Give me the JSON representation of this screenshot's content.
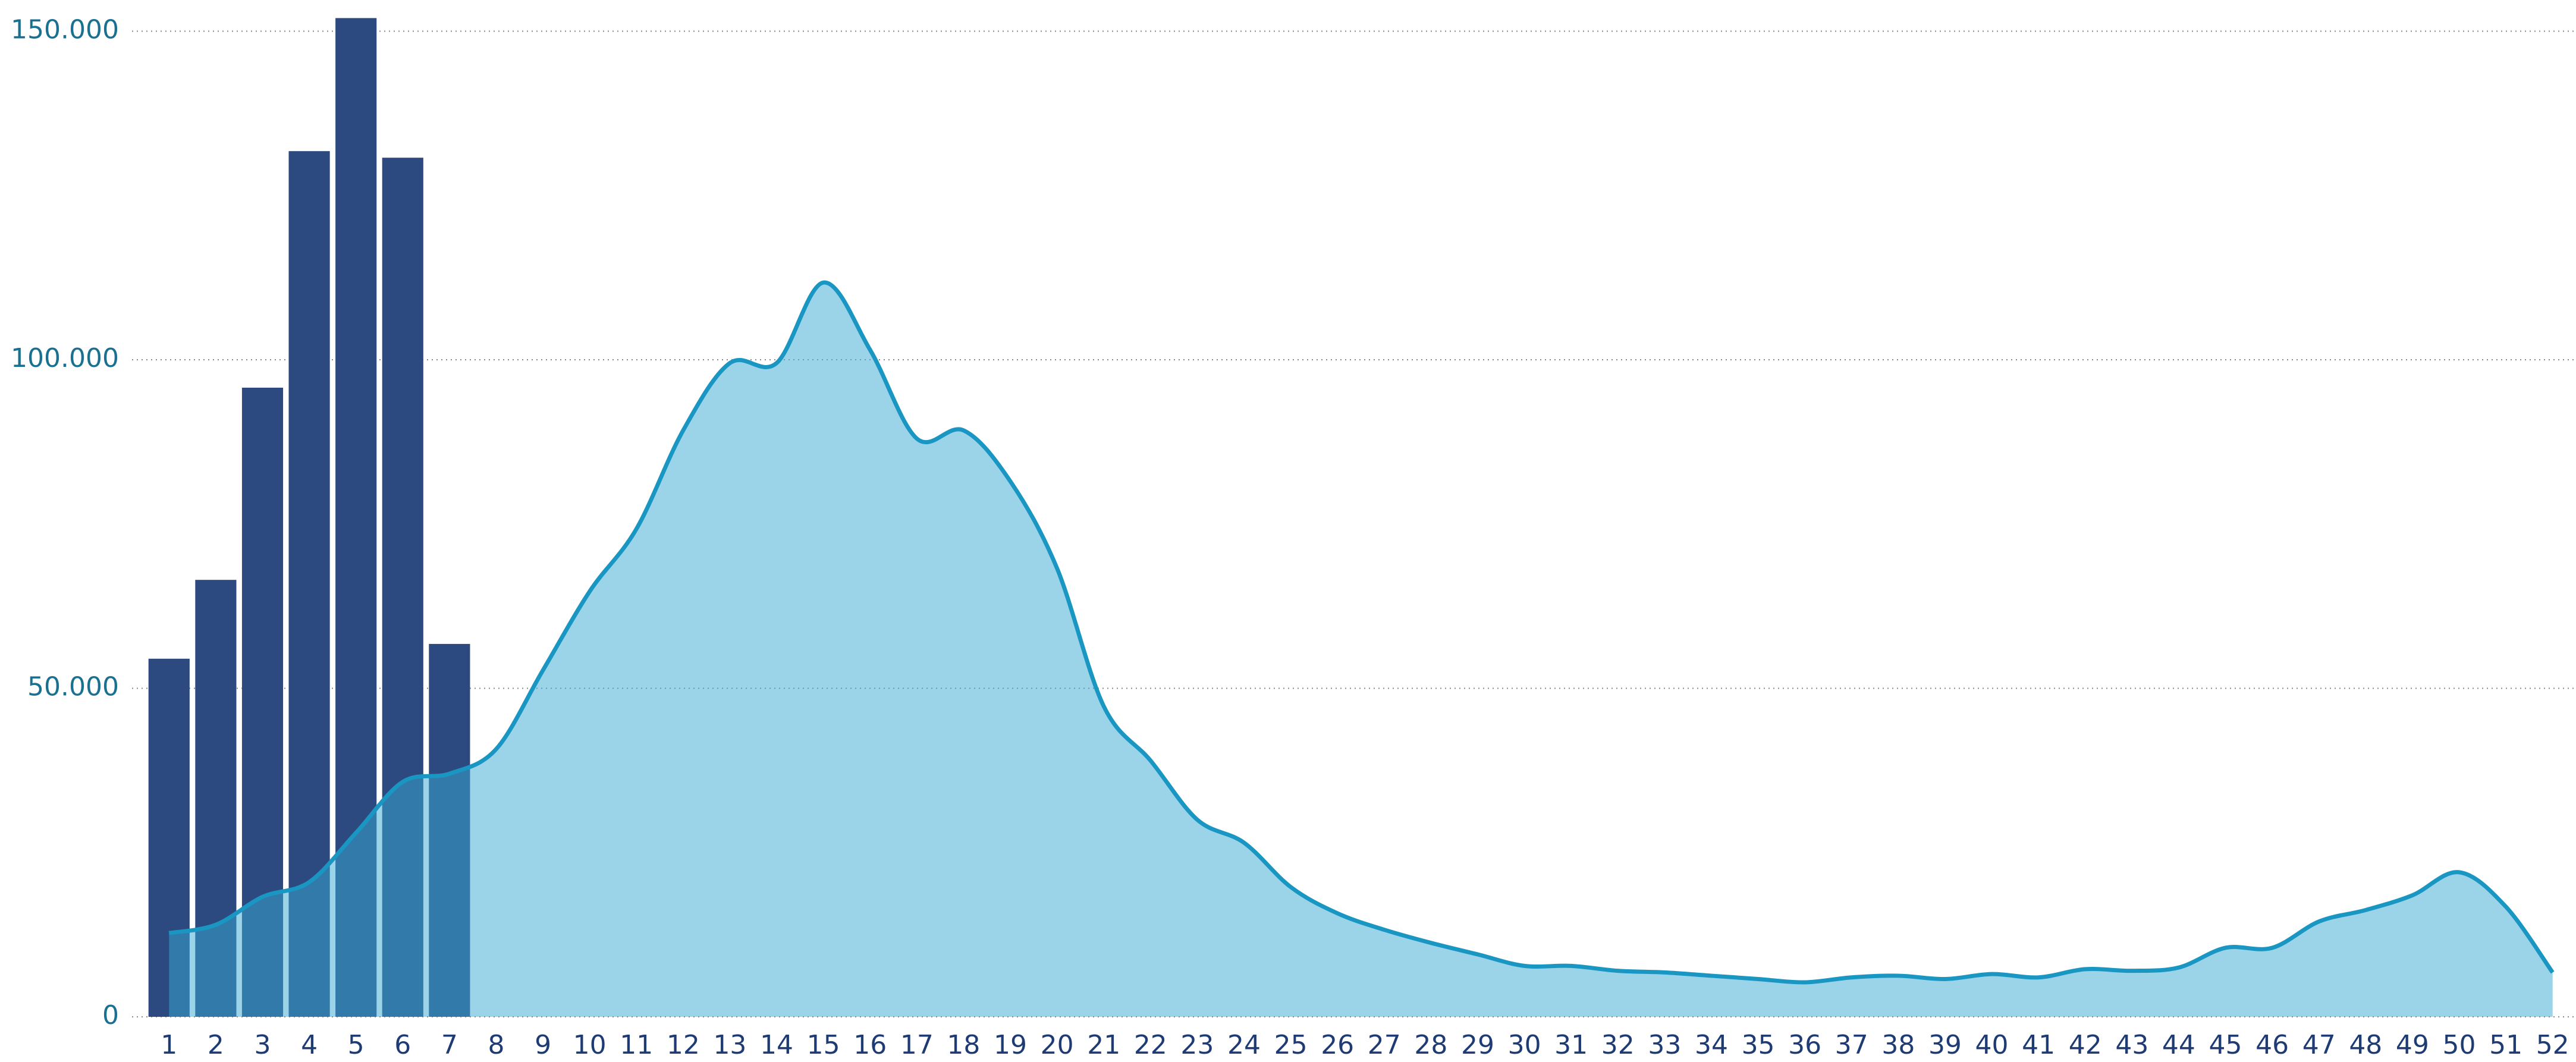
{
  "chart_data": {
    "type": "bar",
    "categories": [
      "1",
      "2",
      "3",
      "4",
      "5",
      "6",
      "7",
      "8",
      "9",
      "10",
      "11",
      "12",
      "13",
      "14",
      "15",
      "16",
      "17",
      "18",
      "19",
      "20",
      "21",
      "22",
      "23",
      "24",
      "25",
      "26",
      "27",
      "28",
      "29",
      "30",
      "31",
      "32",
      "33",
      "34",
      "35",
      "36",
      "37",
      "38",
      "39",
      "40",
      "41",
      "42",
      "43",
      "44",
      "45",
      "46",
      "47",
      "48",
      "49",
      "50",
      "51",
      "52"
    ],
    "series": [
      {
        "type": "bar",
        "color": "#2d4a80",
        "values": [
          54500,
          66500,
          95750,
          131750,
          152000,
          130750,
          56750,
          null,
          null,
          null,
          null,
          null,
          null,
          null,
          null,
          null,
          null,
          null,
          null,
          null,
          null,
          null,
          null,
          null,
          null,
          null,
          null,
          null,
          null,
          null,
          null,
          null,
          null,
          null,
          null,
          null,
          null,
          null,
          null,
          null,
          null,
          null,
          null,
          null,
          null,
          null,
          null,
          null,
          null,
          null,
          null,
          null
        ]
      },
      {
        "type": "area",
        "color": "#1a96c3",
        "fill": "#38a9d4",
        "values": [
          12750,
          14000,
          18250,
          20500,
          28000,
          35750,
          37000,
          40750,
          52750,
          64750,
          74250,
          89250,
          99500,
          99500,
          111750,
          101500,
          88000,
          89250,
          81500,
          68250,
          47250,
          39000,
          30000,
          26500,
          19750,
          15750,
          13250,
          11250,
          9500,
          7750,
          7750,
          7000,
          6750,
          6250,
          5750,
          5250,
          6000,
          6250,
          5750,
          6500,
          6000,
          7250,
          7000,
          7500,
          10500,
          10500,
          14500,
          16250,
          18500,
          22000,
          16750,
          6750
        ]
      }
    ],
    "ylim": [
      0,
      152000
    ],
    "yticks": [
      {
        "value": 0,
        "label": "0"
      },
      {
        "value": 50000,
        "label": "50.000"
      },
      {
        "value": 100000,
        "label": "100.000"
      },
      {
        "value": 150000,
        "label": "150.000"
      }
    ],
    "grid": true
  }
}
